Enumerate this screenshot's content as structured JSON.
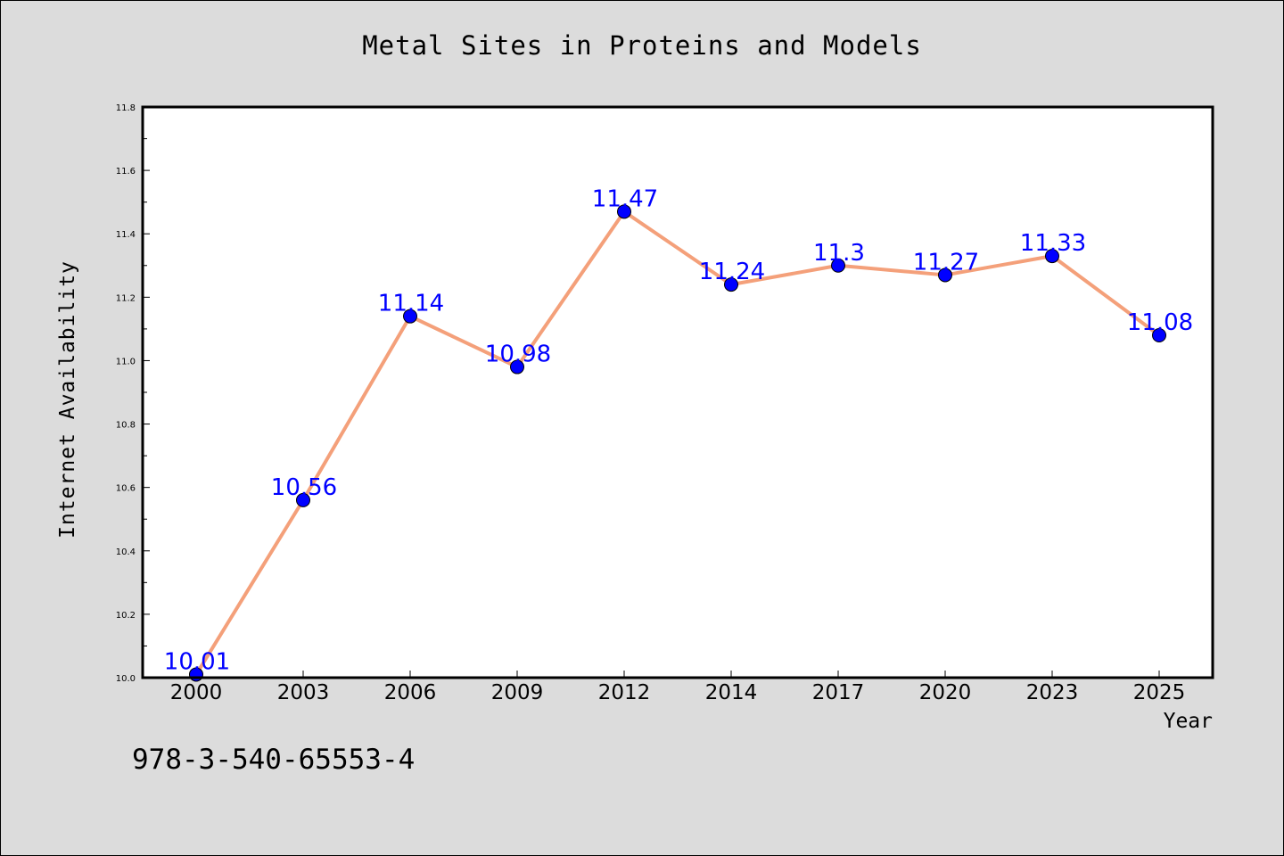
{
  "chart_data": {
    "type": "line",
    "title": "Metal Sites in Proteins and Models",
    "xlabel": "Year",
    "ylabel": "Internet Availability",
    "categories": [
      "2000",
      "2003",
      "2006",
      "2009",
      "2012",
      "2014",
      "2017",
      "2020",
      "2023",
      "2025"
    ],
    "series": [
      {
        "values": [
          10.01,
          10.56,
          11.14,
          10.98,
          11.47,
          11.24,
          11.3,
          11.27,
          11.33,
          11.08
        ]
      }
    ],
    "data_labels": [
      "10.01",
      "10.56",
      "11.14",
      "10.98",
      "11.47",
      "11.24",
      "11.3",
      "11.27",
      "11.33",
      "11.08"
    ],
    "ylim": [
      10.0,
      11.8
    ],
    "y_ticks": [
      "10.0",
      "10.2",
      "10.4",
      "10.6",
      "10.8",
      "11.0",
      "11.2",
      "11.4",
      "11.6",
      "11.8"
    ],
    "grid": false,
    "line_color": "#f4a07a",
    "marker_color": "#0000ff",
    "label_color": "#0000ff",
    "background_color": "#dcdcdc",
    "plot_background": "#ffffff"
  },
  "footnote": "978-3-540-65553-4"
}
